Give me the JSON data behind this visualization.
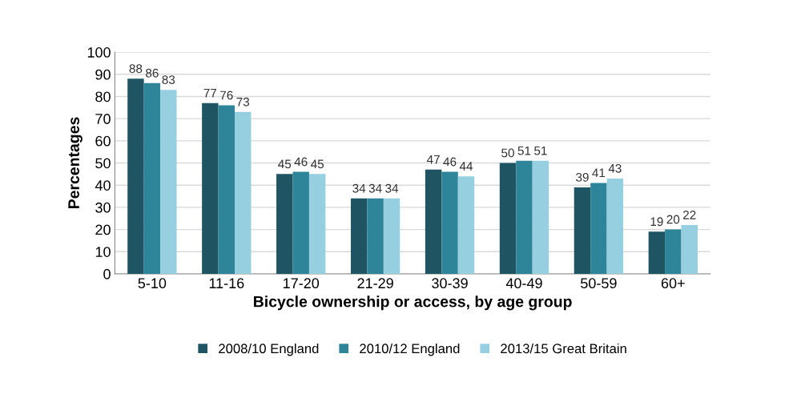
{
  "chart_data": {
    "type": "bar",
    "xlabel": "Bicycle ownership or access, by age group",
    "ylabel": "Percentages",
    "categories": [
      "5-10",
      "11-16",
      "17-20",
      "21-29",
      "30-39",
      "40-49",
      "50-59",
      "60+"
    ],
    "series": [
      {
        "name": "2008/10 England",
        "color": "#1f5462",
        "values": [
          88,
          77,
          45,
          34,
          47,
          50,
          39,
          19
        ]
      },
      {
        "name": "2010/12 England",
        "color": "#2e8599",
        "values": [
          86,
          76,
          46,
          34,
          46,
          51,
          41,
          20
        ]
      },
      {
        "name": "2013/15 Great Britain",
        "color": "#96cfdf",
        "values": [
          83,
          73,
          45,
          34,
          44,
          51,
          43,
          22
        ]
      }
    ],
    "ylim": [
      0,
      100
    ],
    "yticks": [
      0,
      10,
      20,
      30,
      40,
      50,
      60,
      70,
      80,
      90,
      100
    ],
    "grid": "y",
    "legend": "bottom",
    "data_labels": true
  }
}
